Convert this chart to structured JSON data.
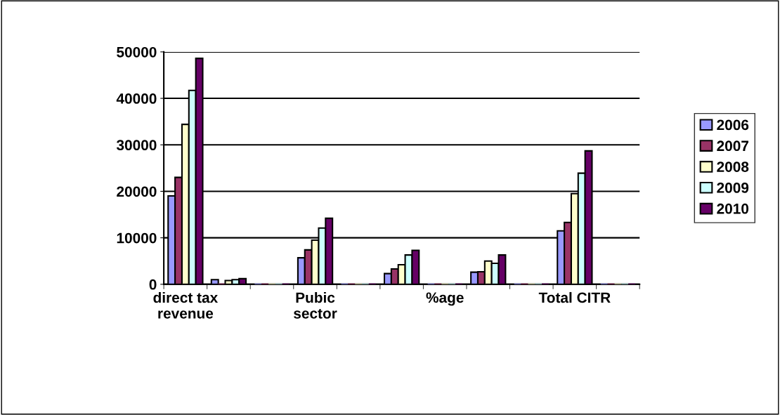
{
  "chart_data": {
    "type": "bar",
    "categories": [
      "direct tax revenue",
      null,
      null,
      "Pubic sector",
      null,
      null,
      "%age",
      null,
      null,
      "Total CITR",
      null
    ],
    "series": [
      {
        "name": "2006",
        "color": "#9999ff",
        "values": [
          19000,
          1000,
          0,
          5700,
          0,
          2300,
          0,
          2600,
          0,
          11500,
          0
        ]
      },
      {
        "name": "2007",
        "color": "#993366",
        "values": [
          23000,
          0,
          0,
          7400,
          0,
          3300,
          0,
          2700,
          0,
          13300,
          0
        ]
      },
      {
        "name": "2008",
        "color": "#ffffcc",
        "values": [
          34400,
          800,
          0,
          9500,
          0,
          4200,
          0,
          5000,
          0,
          19500,
          0
        ]
      },
      {
        "name": "2009",
        "color": "#ccffff",
        "values": [
          41700,
          1000,
          0,
          12100,
          0,
          6300,
          0,
          4500,
          0,
          23900,
          0
        ]
      },
      {
        "name": "2010",
        "color": "#660066",
        "values": [
          48600,
          1200,
          0,
          14200,
          0,
          7300,
          0,
          6300,
          0,
          28700,
          0
        ]
      }
    ],
    "ylim": [
      0,
      50000
    ],
    "yticks": [
      0,
      10000,
      20000,
      30000,
      40000,
      50000
    ],
    "grid": "y",
    "legend": "right"
  }
}
